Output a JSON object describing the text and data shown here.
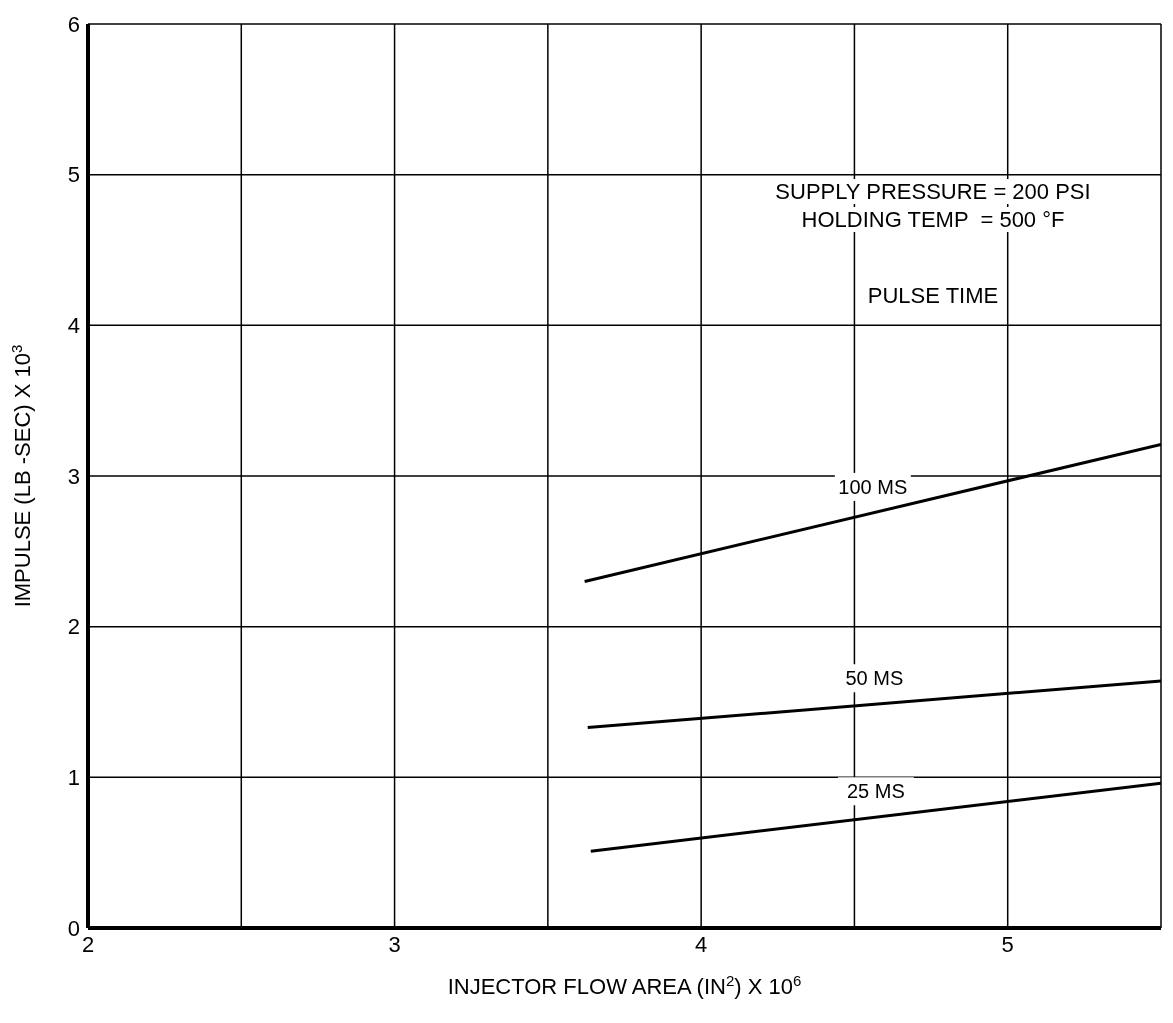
{
  "chart_data": {
    "type": "line",
    "xlabel": "INJECTOR FLOW AREA (IN$^{2}$) X 10$^{6}$",
    "ylabel": "IMPULSE (LB -SEC) X 10$^{3}$",
    "xlim": [
      2,
      5.5
    ],
    "xticks": [
      2,
      {
        "value": 2.5,
        "label": null
      },
      3,
      {
        "value": 3.5,
        "label": null
      },
      4,
      {
        "value": 4.5,
        "label": null
      },
      5
    ],
    "ylim": [
      0,
      6
    ],
    "yticks": [
      0,
      1,
      2,
      3,
      4,
      5,
      6
    ],
    "grid": true,
    "legend_title": "PULSE TIME",
    "annotations": [
      "SUPPLY PRESSURE = 200 PSI",
      "HOLDING TEMP  = 500 °F"
    ],
    "series": [
      {
        "name": "100 MS",
        "color": "#000000",
        "x": [
          3.62,
          5.5
        ],
        "values": [
          2.3,
          3.21
        ]
      },
      {
        "name": "50 MS",
        "color": "#000000",
        "x": [
          3.63,
          5.5
        ],
        "values": [
          1.33,
          1.64
        ]
      },
      {
        "name": "25 MS",
        "color": "#000000",
        "x": [
          3.64,
          5.5
        ],
        "values": [
          0.51,
          0.96
        ]
      }
    ]
  }
}
